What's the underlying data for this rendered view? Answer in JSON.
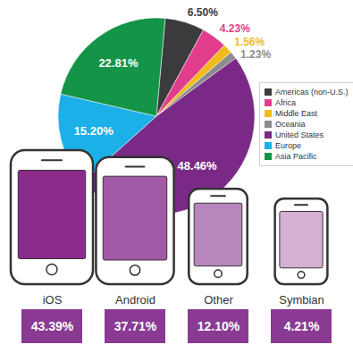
{
  "chart_data": [
    {
      "type": "pie",
      "categories": [
        "Americas (non-U.S.)",
        "Africa",
        "Middle East",
        "Oceania",
        "United States",
        "Europe",
        "Asia Pacific"
      ],
      "values": [
        6.5,
        4.23,
        1.56,
        1.23,
        48.46,
        15.2,
        22.81
      ],
      "value_labels": [
        "6.50%",
        "4.23%",
        "1.56%",
        "1.23%",
        "48.46%",
        "15.20%",
        "22.81%"
      ],
      "colors": [
        "#3b3b3d",
        "#e23d8d",
        "#f0bb1b",
        "#8c8c8c",
        "#7a2a86",
        "#1bb0e8",
        "#139448"
      ],
      "data_labels": true,
      "legend": "right"
    },
    {
      "type": "pictogram",
      "categories": [
        "iOS",
        "Android",
        "Other",
        "Symbian"
      ],
      "values": [
        43.39,
        37.71,
        12.1,
        4.21
      ],
      "value_labels": [
        "43.39%",
        "37.71%",
        "12.10%",
        "4.21%"
      ],
      "colors": [
        "#8b2b8c",
        "#a25aa6",
        "#b886bc",
        "#d4b0d5"
      ],
      "color": "#8a3a93",
      "data_labels": true
    }
  ]
}
